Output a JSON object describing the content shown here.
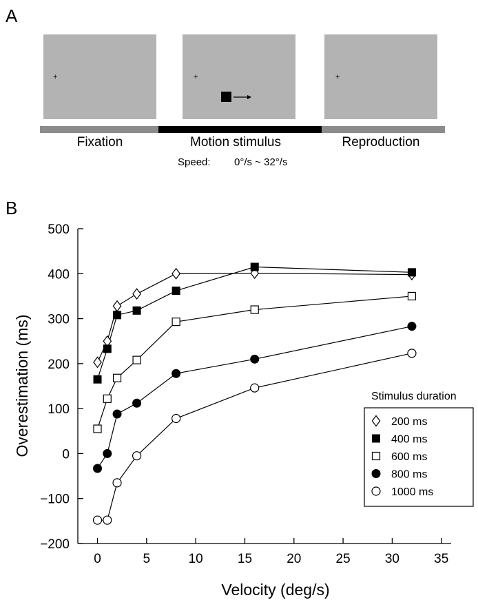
{
  "panel_a": {
    "letter": "A",
    "fixation_mark": "+",
    "phases": [
      "Fixation",
      "Motion stimulus",
      "Reproduction"
    ],
    "speed_label": "Speed:",
    "speed_range": "0°/s ~ 32°/s",
    "colors": {
      "screen": "#b3b3b3",
      "timeline_gray": "#8c8c8c",
      "timeline_black": "#000000"
    }
  },
  "panel_b": {
    "letter": "B"
  },
  "chart_data": {
    "type": "scatter",
    "xlabel": "Velocity (deg/s)",
    "ylabel": "Overestimation (ms)",
    "xlim": [
      -2,
      36
    ],
    "ylim": [
      -200,
      500
    ],
    "xticks": [
      0,
      5,
      10,
      15,
      20,
      25,
      30,
      35
    ],
    "yticks": [
      -200,
      -100,
      0,
      100,
      200,
      300,
      400,
      500
    ],
    "grid": false,
    "legend_title": "Stimulus duration",
    "legend_position": "right",
    "series": [
      {
        "name": "200 ms",
        "marker": "diamond-open",
        "x": [
          0,
          1,
          2,
          4,
          8,
          16,
          32
        ],
        "y": [
          203,
          250,
          328,
          355,
          400,
          401,
          398
        ]
      },
      {
        "name": "400 ms",
        "marker": "square-filled",
        "x": [
          0,
          1,
          2,
          4,
          8,
          16,
          32
        ],
        "y": [
          165,
          233,
          308,
          318,
          362,
          415,
          403
        ]
      },
      {
        "name": "600 ms",
        "marker": "square-open",
        "x": [
          0,
          1,
          2,
          4,
          8,
          16,
          32
        ],
        "y": [
          55,
          122,
          168,
          208,
          293,
          320,
          350
        ]
      },
      {
        "name": "800 ms",
        "marker": "circle-filled",
        "x": [
          0,
          1,
          2,
          4,
          8,
          16,
          32
        ],
        "y": [
          -33,
          0,
          88,
          112,
          178,
          210,
          283
        ]
      },
      {
        "name": "1000 ms",
        "marker": "circle-open",
        "x": [
          0,
          1,
          2,
          4,
          8,
          16,
          32
        ],
        "y": [
          -148,
          -148,
          -65,
          -5,
          78,
          146,
          223
        ]
      }
    ]
  }
}
